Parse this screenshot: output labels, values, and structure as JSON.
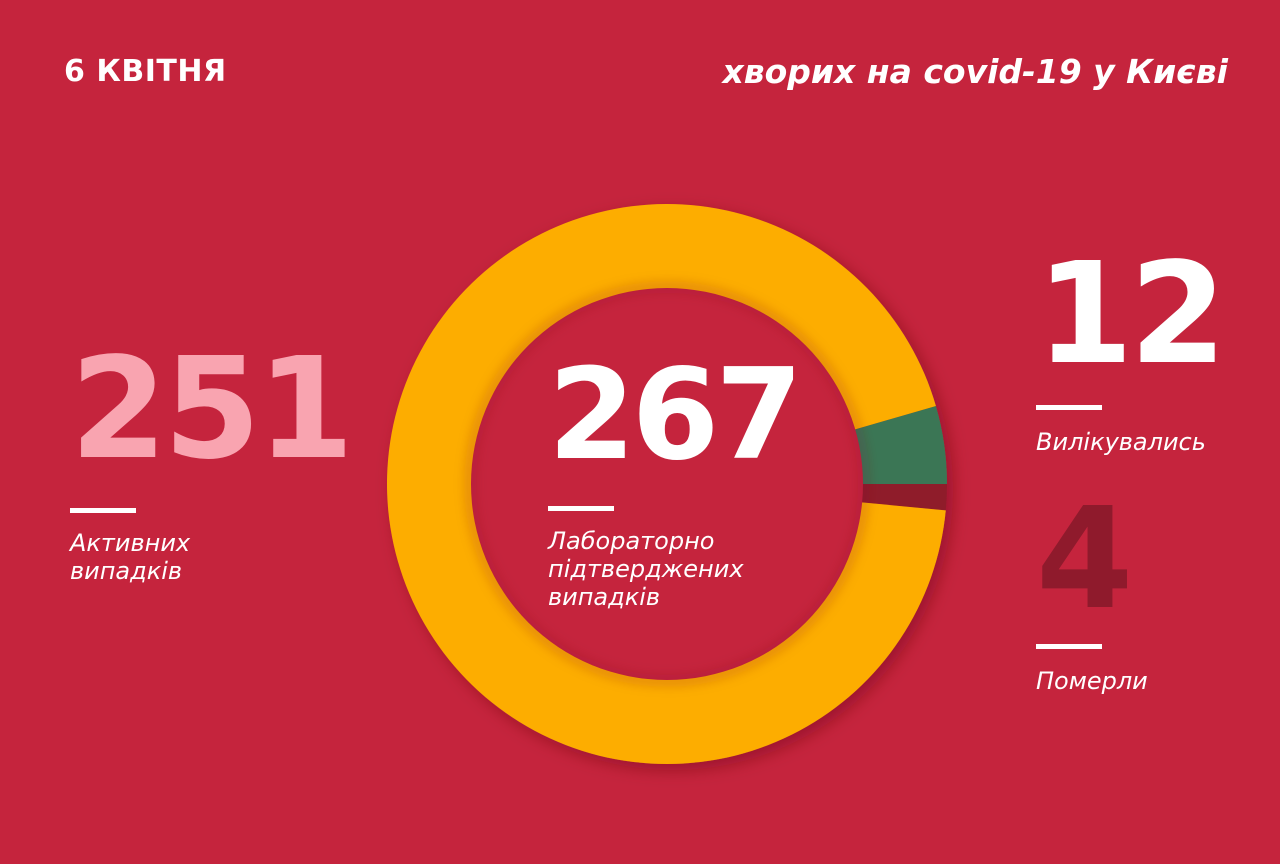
{
  "header": {
    "date": "6 КВІТНЯ",
    "subtitle": "хворих на covid-19 у Києві"
  },
  "stats": {
    "active": {
      "value": "251",
      "label_line1": "Активних",
      "label_line2": "випадків"
    },
    "total": {
      "value": "267",
      "label_line1": "Лабораторно",
      "label_line2": "підтверджених",
      "label_line3": "випадків"
    },
    "recovered": {
      "value": "12",
      "label": "Вилікувались"
    },
    "dead": {
      "value": "4",
      "label": "Померли"
    }
  },
  "colors": {
    "background": "#c5243d",
    "active": "#fdad00",
    "recovered": "#3a7654",
    "dead": "#8f1a2c",
    "active_number": "#f9a4b0"
  },
  "chart_data": {
    "type": "pie",
    "title": "хворих на covid-19 у Києві",
    "subtitle": "6 КВІТНЯ",
    "center_label": "267 Лабораторно підтверджених випадків",
    "categories": [
      "Активних випадків",
      "Вилікувались",
      "Померли"
    ],
    "values": [
      251,
      12,
      4
    ],
    "total": 267,
    "colors": [
      "#fdad00",
      "#3a7654",
      "#8f1a2c"
    ],
    "donut": true
  }
}
